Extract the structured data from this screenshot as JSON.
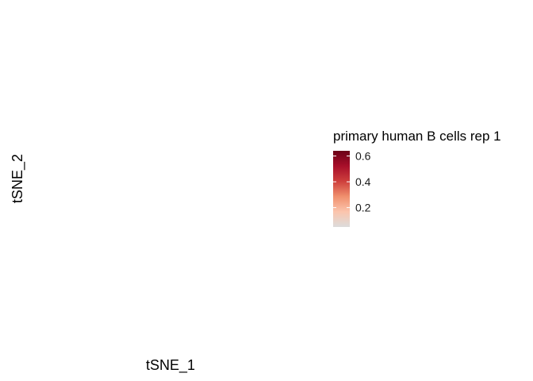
{
  "chart_data": {
    "type": "scatter",
    "title": "",
    "xlabel": "tSNE_1",
    "ylabel": "tSNE_2",
    "points": [],
    "legend": {
      "title": "primary human B cells rep 1",
      "placement": "right",
      "kind": "colorbar",
      "range": [
        0.05,
        0.64
      ],
      "ticks": [
        0.2,
        0.4,
        0.6
      ],
      "tick_labels": [
        "0.2",
        "0.4",
        "0.6"
      ],
      "colors": [
        "#dcdcdc",
        "#fbc5ad",
        "#f0906e",
        "#ce3f3c",
        "#a80f2a",
        "#6b0017"
      ]
    },
    "grid": false
  }
}
